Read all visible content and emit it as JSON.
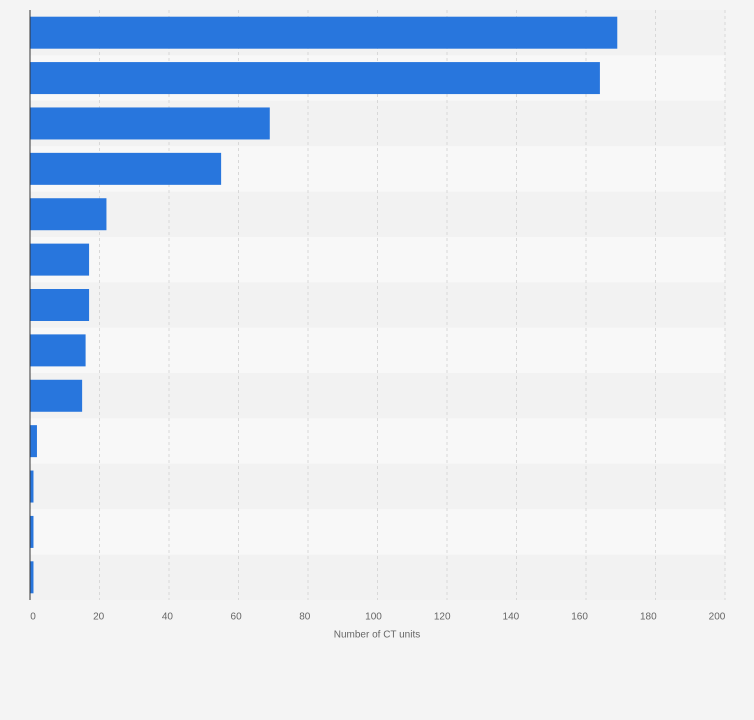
{
  "chart_data": {
    "type": "bar",
    "orientation": "horizontal",
    "x_label": "Number of CT units",
    "categories": [
      null,
      null,
      null,
      null,
      null,
      null,
      null,
      null,
      null,
      null,
      null,
      null,
      null
    ],
    "values": [
      169,
      164,
      69,
      55,
      22,
      17,
      17,
      16,
      15,
      2,
      1,
      1,
      1
    ],
    "color": "#2876dd",
    "xlim": [
      0,
      200
    ],
    "xticks": [
      0,
      20,
      40,
      60,
      80,
      100,
      120,
      140,
      160,
      180,
      200
    ],
    "grid": true
  }
}
